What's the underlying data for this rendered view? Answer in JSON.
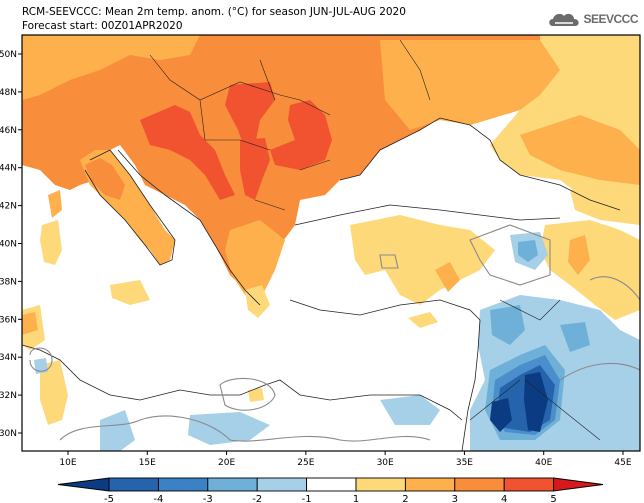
{
  "header": {
    "title_line1": "RCM-SEEVCCC: Mean 2m temp. anom. (°C) for season JUN-JUL-AUG 2020",
    "title_line2": "Forecast start: 00Z01APR2020",
    "logo_text": "SEEVCCC",
    "logo_icon": "cloud-icon"
  },
  "map": {
    "lon_range": [
      7,
      46
    ],
    "lat_range": [
      29,
      51
    ],
    "lat_ticks": [
      "50N",
      "48N",
      "46N",
      "44N",
      "42N",
      "40N",
      "38N",
      "36N",
      "34N",
      "32N",
      "30N"
    ],
    "lat_values": [
      50,
      48,
      46,
      44,
      42,
      40,
      38,
      36,
      34,
      32,
      30
    ],
    "lon_ticks": [
      "10E",
      "15E",
      "20E",
      "25E",
      "30E",
      "35E",
      "40E",
      "45E"
    ],
    "lon_values": [
      10,
      15,
      20,
      25,
      30,
      35,
      40,
      45
    ],
    "colors": {
      "neg5": "#0b3b82",
      "neg4": "#2563ac",
      "neg3": "#4a8fcb",
      "neg2": "#6fb0d9",
      "neg1": "#a6cfe8",
      "pos1": "#fed97a",
      "pos2": "#fdb04b",
      "pos3": "#f88d3b",
      "pos4": "#f1522f",
      "pos5": "#d7191c",
      "land_border": "#222222",
      "contour": "#8a8a8a"
    }
  },
  "colorbar": {
    "labels": [
      "-5",
      "-4",
      "-3",
      "-2",
      "-1",
      "1",
      "2",
      "3",
      "4",
      "5"
    ],
    "bins": [
      {
        "from": null,
        "to": -5,
        "color": "#0b3b82"
      },
      {
        "from": -5,
        "to": -4,
        "color": "#2563ac"
      },
      {
        "from": -4,
        "to": -3,
        "color": "#3b82c4"
      },
      {
        "from": -3,
        "to": -2,
        "color": "#6fb0d9"
      },
      {
        "from": -2,
        "to": -1,
        "color": "#a6cfe8"
      },
      {
        "from": -1,
        "to": 1,
        "color": "#ffffff"
      },
      {
        "from": 1,
        "to": 2,
        "color": "#fed97a"
      },
      {
        "from": 2,
        "to": 3,
        "color": "#fdb04b"
      },
      {
        "from": 3,
        "to": 4,
        "color": "#f88d3b"
      },
      {
        "from": 4,
        "to": 5,
        "color": "#f1522f"
      },
      {
        "from": 5,
        "to": null,
        "color": "#d7191c"
      }
    ]
  }
}
